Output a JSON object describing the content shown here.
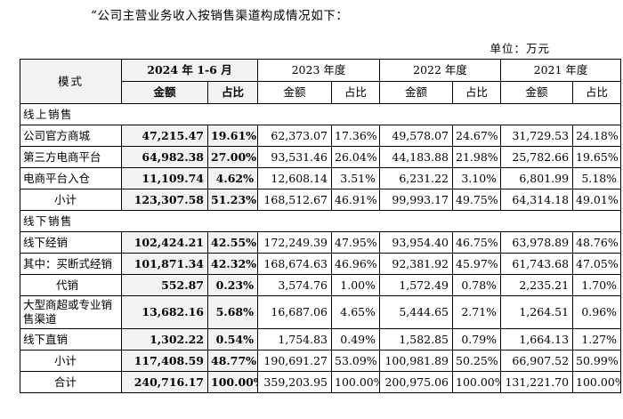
{
  "intro_text": "“公司主营业务收入按销售渠道构成情况如下：",
  "unit_label": "单位：万元",
  "table": {
    "mode_header": "模式",
    "periods": [
      "2024 年 1-6 月",
      "2023 年度",
      "2022 年度",
      "2021 年度"
    ],
    "amount_label": "金额",
    "ratio_label": "占比",
    "online_section": "线上销售",
    "offline_section": "线下销售",
    "rows": {
      "r1": {
        "label": "公司官方商城",
        "v": [
          "47,215.47",
          "19.61%",
          "62,373.07",
          "17.36%",
          "49,578.07",
          "24.67%",
          "31,729.53",
          "24.18%"
        ]
      },
      "r2": {
        "label": "第三方电商平台",
        "v": [
          "64,982.38",
          "27.00%",
          "93,531.46",
          "26.04%",
          "44,183.88",
          "21.98%",
          "25,782.66",
          "19.65%"
        ]
      },
      "r3": {
        "label": "电商平台入仓",
        "v": [
          "11,109.74",
          "4.62%",
          "12,608.14",
          "3.51%",
          "6,231.22",
          "3.10%",
          "6,801.99",
          "5.18%"
        ]
      },
      "r4": {
        "label": "小计",
        "v": [
          "123,307.58",
          "51.23%",
          "168,512.67",
          "46.91%",
          "99,993.17",
          "49.75%",
          "64,314.18",
          "49.01%"
        ]
      },
      "r5": {
        "label": "线下经销",
        "v": [
          "102,424.21",
          "42.55%",
          "172,249.39",
          "47.95%",
          "93,954.40",
          "46.75%",
          "63,978.89",
          "48.76%"
        ]
      },
      "r6": {
        "label": "其中：买断式经销",
        "v": [
          "101,871.34",
          "42.32%",
          "168,674.63",
          "46.96%",
          "92,381.92",
          "45.97%",
          "61,743.68",
          "47.05%"
        ]
      },
      "r7": {
        "label": "代销",
        "v": [
          "552.87",
          "0.23%",
          "3,574.76",
          "1.00%",
          "1,572.49",
          "0.78%",
          "2,235.21",
          "1.70%"
        ]
      },
      "r8": {
        "label": "大型商超或专业销售渠道",
        "v": [
          "13,682.16",
          "5.68%",
          "16,687.06",
          "4.65%",
          "5,444.65",
          "2.71%",
          "1,264.51",
          "0.96%"
        ]
      },
      "r9": {
        "label": "线下直销",
        "v": [
          "1,302.22",
          "0.54%",
          "1,754.83",
          "0.49%",
          "1,582.85",
          "0.79%",
          "1,664.13",
          "1.27%"
        ]
      },
      "r10": {
        "label": "小计",
        "v": [
          "117,408.59",
          "48.77%",
          "190,691.27",
          "53.09%",
          "100,981.89",
          "50.25%",
          "66,907.52",
          "50.99%"
        ]
      },
      "r11": {
        "label": "合计",
        "v": [
          "240,716.17",
          "100.00%",
          "359,203.95",
          "100.00%",
          "200,975.06",
          "100.00%",
          "131,221.70",
          "100.00%"
        ]
      }
    }
  }
}
